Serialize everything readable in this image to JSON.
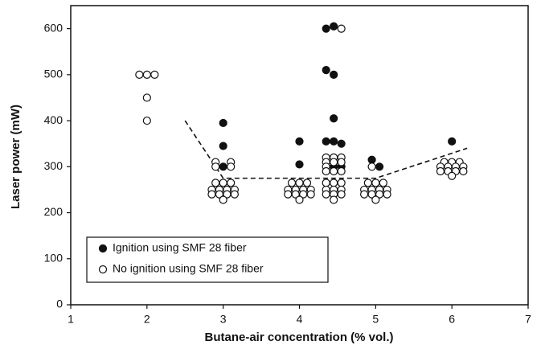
{
  "chart_data": {
    "type": "scatter",
    "xlabel": "Butane-air concentration (% vol.)",
    "ylabel": "Laser power (mW)",
    "xlim": [
      1,
      7
    ],
    "xticks": [
      1,
      2,
      3,
      4,
      5,
      6,
      7
    ],
    "ylim": [
      0,
      650
    ],
    "yticks": [
      0,
      100,
      200,
      300,
      400,
      500,
      600
    ],
    "legend_position": "lower left",
    "series": [
      {
        "name": "Ignition using SMF 28 fiber",
        "color": "#111111",
        "filled": true,
        "x": [
          3,
          3,
          3,
          4,
          4,
          4.35,
          4.45,
          4.35,
          4.45,
          4.45,
          4.35,
          4.45,
          4.55,
          4.45,
          4.55,
          4.95,
          5.05,
          6
        ],
        "values": [
          395,
          345,
          300,
          355,
          305,
          600,
          605,
          510,
          500,
          405,
          355,
          355,
          350,
          300,
          300,
          315,
          300,
          355
        ]
      },
      {
        "name": "No ignition using SMF 28 fiber",
        "color": "#111111",
        "filled": false,
        "x": [
          1.9,
          2.0,
          2.1,
          2.0,
          2.0,
          2.9,
          3.1,
          2.9,
          3.1,
          2.9,
          3.0,
          3.1,
          2.85,
          2.95,
          3.05,
          3.15,
          2.85,
          2.95,
          3.05,
          3.15,
          3.0,
          3.9,
          4.0,
          4.1,
          3.85,
          3.95,
          4.05,
          4.15,
          3.85,
          3.95,
          4.05,
          4.15,
          4.0,
          4.55,
          4.35,
          4.45,
          4.55,
          4.35,
          4.45,
          4.55,
          4.35,
          4.35,
          4.45,
          4.55,
          4.35,
          4.45,
          4.55,
          4.35,
          4.45,
          4.55,
          4.35,
          4.45,
          4.55,
          4.45,
          4.95,
          4.9,
          5.0,
          5.1,
          4.85,
          4.95,
          5.05,
          5.15,
          4.85,
          4.95,
          5.05,
          5.15,
          5.0,
          5.9,
          6.0,
          6.1,
          5.85,
          5.95,
          6.05,
          6.15,
          5.85,
          5.95,
          6.05,
          6.15,
          6.0
        ],
        "values": [
          500,
          500,
          500,
          450,
          400,
          310,
          310,
          300,
          300,
          265,
          265,
          265,
          250,
          250,
          250,
          250,
          240,
          240,
          240,
          240,
          228,
          265,
          265,
          265,
          250,
          250,
          250,
          250,
          240,
          240,
          240,
          240,
          228,
          600,
          320,
          320,
          320,
          310,
          310,
          310,
          300,
          290,
          290,
          290,
          265,
          265,
          265,
          250,
          250,
          250,
          240,
          240,
          240,
          228,
          300,
          265,
          265,
          265,
          250,
          250,
          250,
          250,
          240,
          240,
          240,
          240,
          228,
          310,
          310,
          310,
          300,
          300,
          300,
          300,
          290,
          290,
          290,
          290,
          280
        ]
      }
    ],
    "trend_line": {
      "x": [
        2.5,
        3.0,
        5.0,
        6.2
      ],
      "values": [
        400,
        275,
        275,
        340
      ],
      "color": "#111111",
      "dashed": true
    }
  }
}
